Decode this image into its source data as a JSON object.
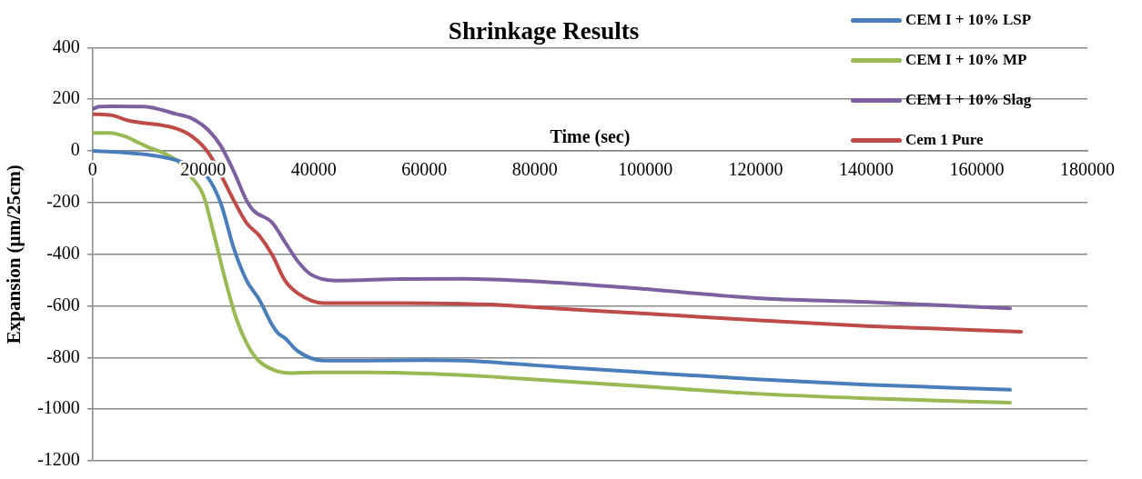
{
  "chart_data": {
    "type": "line",
    "title": "Shrinkage Results",
    "xlabel": "Time (sec)",
    "ylabel": "Expansion (µm/25cm)",
    "xlim": [
      0,
      180000
    ],
    "xticks": [
      0,
      20000,
      40000,
      60000,
      80000,
      100000,
      120000,
      140000,
      160000,
      180000
    ],
    "ylim": [
      -1200,
      400
    ],
    "yticks": [
      -1200,
      -1000,
      -800,
      -600,
      -400,
      -200,
      0,
      200,
      400
    ],
    "grid": "y",
    "legend": "top right",
    "marker": "none",
    "line_style": "solid",
    "series": [
      {
        "name": "CEM I + 10% LSP",
        "color": "#4a7ebb",
        "x": [
          0,
          5000,
          10000,
          15000,
          18000,
          20900,
          23200,
          25550,
          27850,
          30150,
          32500,
          33500,
          34800,
          37100,
          41750,
          50000,
          60000,
          67200,
          80000,
          100000,
          120000,
          140000,
          166000
        ],
        "values": [
          0,
          -5,
          -15,
          -35,
          -60,
          -105,
          -204,
          -378,
          -502,
          -576,
          -675,
          -705,
          -725,
          -775,
          -812,
          -812,
          -810,
          -812,
          -830,
          -858,
          -884,
          -905,
          -925
        ]
      },
      {
        "name": "CEM I + 10% MP",
        "color": "#98b954",
        "x": [
          0,
          3000,
          6000,
          8000,
          10000,
          13000,
          16000,
          18000,
          20000,
          22000,
          24000,
          26000,
          28000,
          30000,
          33000,
          36000,
          40000,
          50000,
          60000,
          72000,
          80000,
          100000,
          120000,
          140000,
          166000
        ],
        "values": [
          70,
          70,
          55,
          35,
          15,
          -10,
          -50,
          -105,
          -170,
          -328,
          -500,
          -650,
          -750,
          -812,
          -850,
          -860,
          -858,
          -858,
          -862,
          -874,
          -885,
          -912,
          -940,
          -958,
          -975
        ]
      },
      {
        "name": "CEM I + 10% Slag",
        "color": "#7d60a0",
        "x": [
          0,
          1150,
          3500,
          9300,
          15100,
          18000,
          20900,
          23200,
          25550,
          27850,
          29000,
          32500,
          34800,
          37100,
          39400,
          44000,
          55700,
          67200,
          80000,
          100000,
          120000,
          140000,
          166000
        ],
        "values": [
          162,
          172,
          173,
          172,
          143,
          125,
          81,
          19,
          -80,
          -192,
          -229,
          -278,
          -353,
          -427,
          -477,
          -502,
          -496,
          -495,
          -505,
          -535,
          -570,
          -585,
          -610
        ]
      },
      {
        "name": "Cem 1 Pure",
        "color": "#be4b48",
        "x": [
          0,
          3500,
          6400,
          15100,
          18000,
          20900,
          23200,
          25550,
          27850,
          30150,
          32500,
          34800,
          37100,
          41750,
          55700,
          72000,
          80000,
          100000,
          120000,
          140000,
          168000
        ],
        "values": [
          143,
          138,
          118,
          87,
          56,
          -6,
          -93,
          -192,
          -279,
          -328,
          -403,
          -502,
          -551,
          -589,
          -589,
          -595,
          -605,
          -630,
          -655,
          -678,
          -700
        ]
      }
    ]
  }
}
